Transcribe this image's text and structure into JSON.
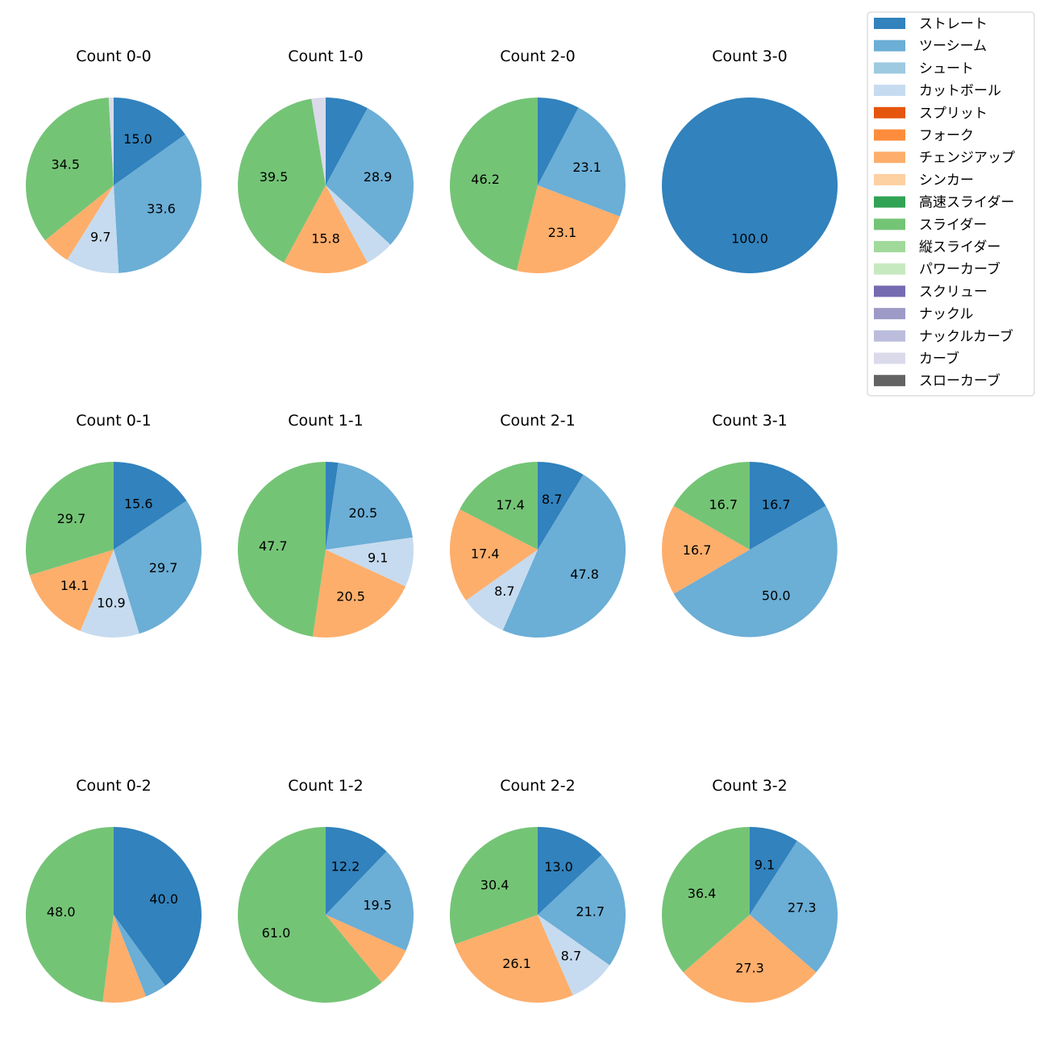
{
  "legend": {
    "placement": "top-right",
    "items": [
      {
        "name": "ストレート",
        "color": "#3182bd"
      },
      {
        "name": "ツーシーム",
        "color": "#6baed6"
      },
      {
        "name": "シュート",
        "color": "#9ecae1"
      },
      {
        "name": "カットボール",
        "color": "#c6dbef"
      },
      {
        "name": "スプリット",
        "color": "#e6550d"
      },
      {
        "name": "フォーク",
        "color": "#fd8d3c"
      },
      {
        "name": "チェンジアップ",
        "color": "#fdae6b"
      },
      {
        "name": "シンカー",
        "color": "#fdd0a2"
      },
      {
        "name": "高速スライダー",
        "color": "#31a354"
      },
      {
        "name": "スライダー",
        "color": "#74c476"
      },
      {
        "name": "縦スライダー",
        "color": "#a1d99b"
      },
      {
        "name": "パワーカーブ",
        "color": "#c7e9c0"
      },
      {
        "name": "スクリュー",
        "color": "#756bb1"
      },
      {
        "name": "ナックル",
        "color": "#9e9ac8"
      },
      {
        "name": "ナックルカーブ",
        "color": "#bcbddc"
      },
      {
        "name": "カーブ",
        "color": "#dadaeb"
      },
      {
        "name": "スローカーブ",
        "color": "#636363"
      }
    ]
  },
  "chart_data": [
    {
      "type": "pie",
      "title": "Count 0-0",
      "slices": [
        {
          "label": "ストレート",
          "value": 15.0,
          "shown": "15.0"
        },
        {
          "label": "ツーシーム",
          "value": 33.6,
          "shown": "33.6"
        },
        {
          "label": "カットボール",
          "value": 9.7,
          "shown": "9.7"
        },
        {
          "label": "チェンジアップ",
          "value": 5.3,
          "shown": ""
        },
        {
          "label": "スライダー",
          "value": 34.5,
          "shown": "34.5"
        },
        {
          "label": "カーブ",
          "value": 0.9,
          "shown": ""
        }
      ]
    },
    {
      "type": "pie",
      "title": "Count 1-0",
      "slices": [
        {
          "label": "ストレート",
          "value": 7.9,
          "shown": ""
        },
        {
          "label": "ツーシーム",
          "value": 28.9,
          "shown": "28.9"
        },
        {
          "label": "カットボール",
          "value": 5.3,
          "shown": ""
        },
        {
          "label": "チェンジアップ",
          "value": 15.8,
          "shown": "15.8"
        },
        {
          "label": "スライダー",
          "value": 39.5,
          "shown": "39.5"
        },
        {
          "label": "カーブ",
          "value": 2.6,
          "shown": ""
        }
      ]
    },
    {
      "type": "pie",
      "title": "Count 2-0",
      "slices": [
        {
          "label": "ストレート",
          "value": 7.7,
          "shown": ""
        },
        {
          "label": "ツーシーム",
          "value": 23.1,
          "shown": "23.1"
        },
        {
          "label": "チェンジアップ",
          "value": 23.1,
          "shown": "23.1"
        },
        {
          "label": "スライダー",
          "value": 46.2,
          "shown": "46.2"
        }
      ]
    },
    {
      "type": "pie",
      "title": "Count 3-0",
      "slices": [
        {
          "label": "ストレート",
          "value": 100.0,
          "shown": "100.0"
        }
      ]
    },
    {
      "type": "pie",
      "title": "Count 0-1",
      "slices": [
        {
          "label": "ストレート",
          "value": 15.6,
          "shown": "15.6"
        },
        {
          "label": "ツーシーム",
          "value": 29.7,
          "shown": "29.7"
        },
        {
          "label": "カットボール",
          "value": 10.9,
          "shown": "10.9"
        },
        {
          "label": "チェンジアップ",
          "value": 14.1,
          "shown": "14.1"
        },
        {
          "label": "スライダー",
          "value": 29.7,
          "shown": "29.7"
        }
      ]
    },
    {
      "type": "pie",
      "title": "Count 1-1",
      "slices": [
        {
          "label": "ストレート",
          "value": 2.3,
          "shown": ""
        },
        {
          "label": "ツーシーム",
          "value": 20.5,
          "shown": "20.5"
        },
        {
          "label": "カットボール",
          "value": 9.1,
          "shown": "9.1"
        },
        {
          "label": "チェンジアップ",
          "value": 20.5,
          "shown": "20.5"
        },
        {
          "label": "スライダー",
          "value": 47.7,
          "shown": "47.7"
        }
      ]
    },
    {
      "type": "pie",
      "title": "Count 2-1",
      "slices": [
        {
          "label": "ストレート",
          "value": 8.7,
          "shown": "8.7"
        },
        {
          "label": "ツーシーム",
          "value": 47.8,
          "shown": "47.8"
        },
        {
          "label": "カットボール",
          "value": 8.7,
          "shown": "8.7"
        },
        {
          "label": "チェンジアップ",
          "value": 17.4,
          "shown": "17.4"
        },
        {
          "label": "スライダー",
          "value": 17.4,
          "shown": "17.4"
        }
      ]
    },
    {
      "type": "pie",
      "title": "Count 3-1",
      "slices": [
        {
          "label": "ストレート",
          "value": 16.7,
          "shown": "16.7"
        },
        {
          "label": "ツーシーム",
          "value": 50.0,
          "shown": "50.0"
        },
        {
          "label": "チェンジアップ",
          "value": 16.7,
          "shown": "16.7"
        },
        {
          "label": "スライダー",
          "value": 16.7,
          "shown": "16.7"
        }
      ]
    },
    {
      "type": "pie",
      "title": "Count 0-2",
      "slices": [
        {
          "label": "ストレート",
          "value": 40.0,
          "shown": "40.0"
        },
        {
          "label": "ツーシーム",
          "value": 4.0,
          "shown": ""
        },
        {
          "label": "チェンジアップ",
          "value": 8.0,
          "shown": ""
        },
        {
          "label": "スライダー",
          "value": 48.0,
          "shown": "48.0"
        }
      ]
    },
    {
      "type": "pie",
      "title": "Count 1-2",
      "slices": [
        {
          "label": "ストレート",
          "value": 12.2,
          "shown": "12.2"
        },
        {
          "label": "ツーシーム",
          "value": 19.5,
          "shown": "19.5"
        },
        {
          "label": "チェンジアップ",
          "value": 7.3,
          "shown": ""
        },
        {
          "label": "スライダー",
          "value": 61.0,
          "shown": "61.0"
        }
      ]
    },
    {
      "type": "pie",
      "title": "Count 2-2",
      "slices": [
        {
          "label": "ストレート",
          "value": 13.0,
          "shown": "13.0"
        },
        {
          "label": "ツーシーム",
          "value": 21.7,
          "shown": "21.7"
        },
        {
          "label": "カットボール",
          "value": 8.7,
          "shown": "8.7"
        },
        {
          "label": "チェンジアップ",
          "value": 26.1,
          "shown": "26.1"
        },
        {
          "label": "スライダー",
          "value": 30.4,
          "shown": "30.4"
        }
      ]
    },
    {
      "type": "pie",
      "title": "Count 3-2",
      "slices": [
        {
          "label": "ストレート",
          "value": 9.1,
          "shown": "9.1"
        },
        {
          "label": "ツーシーム",
          "value": 27.3,
          "shown": "27.3"
        },
        {
          "label": "チェンジアップ",
          "value": 27.3,
          "shown": "27.3"
        },
        {
          "label": "スライダー",
          "value": 36.4,
          "shown": "36.4"
        }
      ]
    }
  ]
}
